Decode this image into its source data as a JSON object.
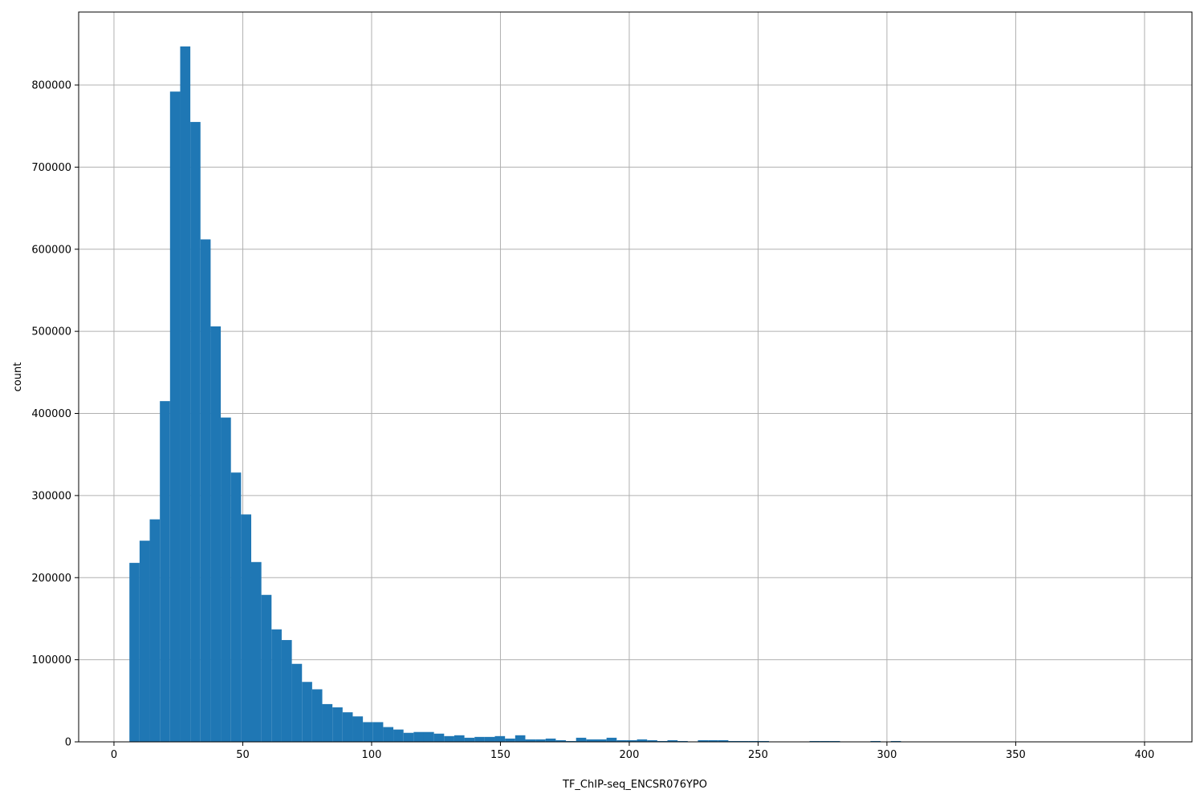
{
  "chart_data": {
    "type": "bar",
    "subtype": "histogram",
    "title": "",
    "xlabel": "TF_ChIP-seq_ENCSR076YPO",
    "ylabel": "count",
    "xlim": [
      -13.7,
      418.4
    ],
    "ylim": [
      0,
      888900
    ],
    "grid": true,
    "bar_color": "#1f77b4",
    "grid_color": "#b0b0b0",
    "bin_start": 6,
    "bin_width": 3.94,
    "counts": [
      218000,
      245000,
      271000,
      415000,
      792000,
      847000,
      755000,
      612000,
      506000,
      395000,
      328000,
      277000,
      219000,
      179000,
      137000,
      124000,
      95000,
      73000,
      64000,
      46000,
      42000,
      36000,
      31000,
      24000,
      24000,
      18000,
      15000,
      11000,
      12000,
      12000,
      10000,
      7000,
      8000,
      5000,
      6000,
      6000,
      7000,
      4000,
      8000,
      3000,
      3000,
      4000,
      2000,
      1000,
      5000,
      3000,
      3000,
      5000,
      2000,
      2000,
      3000,
      2000,
      1000,
      2000,
      1000,
      500,
      2000,
      2000,
      2000,
      1000,
      1000,
      1000,
      1000,
      500,
      500,
      300,
      300,
      1000,
      1000,
      1000,
      500,
      300,
      200,
      1000,
      300,
      1000,
      0,
      0,
      0,
      0,
      0,
      0,
      0,
      0,
      0,
      0,
      0,
      0,
      0,
      0,
      0,
      0,
      0,
      0,
      0,
      0,
      0,
      0,
      0,
      0
    ],
    "xticks": [
      0,
      50,
      100,
      150,
      200,
      250,
      300,
      350,
      400
    ],
    "xtick_labels": [
      "0",
      "50",
      "100",
      "150",
      "200",
      "250",
      "300",
      "350",
      "400"
    ],
    "yticks": [
      0,
      100000,
      200000,
      300000,
      400000,
      500000,
      600000,
      700000,
      800000
    ],
    "ytick_labels": [
      "0",
      "100000",
      "200000",
      "300000",
      "400000",
      "500000",
      "600000",
      "700000",
      "800000"
    ]
  }
}
